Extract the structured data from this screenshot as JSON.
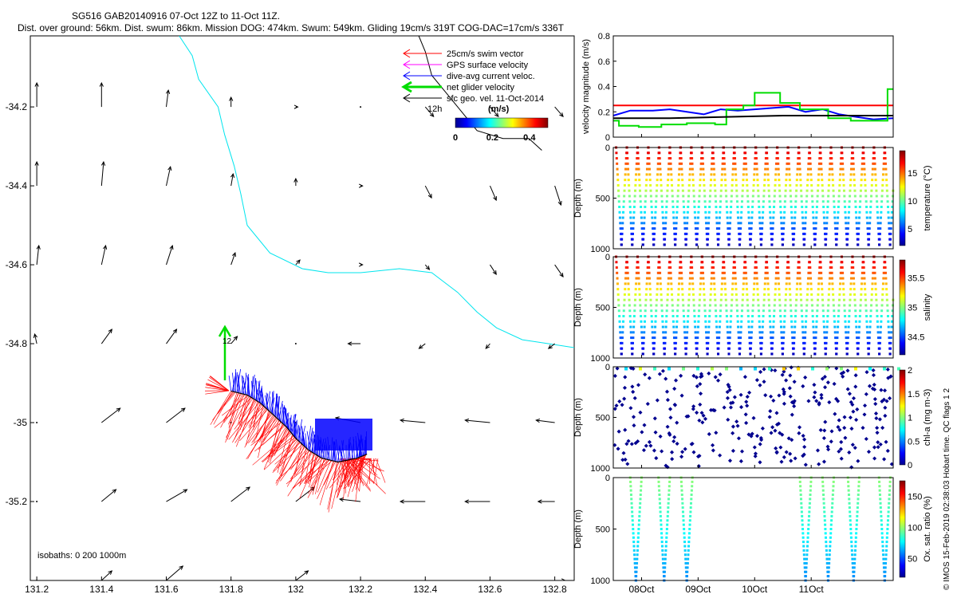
{
  "header": {
    "title": "SG516 GAB20140916 07-Oct 12Z to 11-Oct 11Z.",
    "subtitle": "Dist. over ground: 56km. Dist. swum: 86km. Mission DOG: 474km. Swum: 549km. Gliding 19cm/s 319T COG-DAC=17cm/s 336T"
  },
  "credit": "© IMOS 15-Feb-2019 02:38:03 Hobart time. QC flags 1  2",
  "colors": {
    "swim": "#ff0000",
    "gps": "#ff00ff",
    "dac": "#0000ff",
    "net": "#00dd00",
    "geo": "#000000",
    "coast": "#00e5ee",
    "isobath": "#000000"
  },
  "chart_data": [
    {
      "type": "map",
      "xticks": [
        "131.2",
        "131.4",
        "131.6",
        "131.8",
        "132",
        "132.2",
        "132.4",
        "132.6",
        "132.8"
      ],
      "yticks": [
        "-34.2",
        "-34.4",
        "-34.6",
        "-34.8",
        "-35",
        "-35.2"
      ],
      "xlim": [
        131.18,
        132.86
      ],
      "ylim": [
        -35.4,
        -34.02
      ],
      "legend": [
        "25cm/s swim vector",
        "GPS surface velocity",
        "dive-avg current veloc.",
        "net glider velocity",
        "sfc geo. vel. 11-Oct-2014"
      ],
      "legend_position": "top-right",
      "track_time_label": "12h",
      "start_label": "12",
      "colorbar": {
        "label": "(m/s)",
        "ticks": [
          "0",
          "0.2",
          "0.4"
        ],
        "range": [
          0,
          0.5
        ]
      },
      "isobaths_label": "isobaths: 0   200   1000m",
      "isobath_lines": [
        {
          "name": "coast",
          "points": [
            [
              131.64,
              -34.02
            ],
            [
              131.68,
              -34.07
            ],
            [
              131.7,
              -34.13
            ],
            [
              131.76,
              -34.2
            ],
            [
              131.78,
              -34.27
            ],
            [
              131.81,
              -34.35
            ],
            [
              131.83,
              -34.42
            ],
            [
              131.85,
              -34.5
            ],
            [
              131.92,
              -34.57
            ],
            [
              132.02,
              -34.61
            ],
            [
              132.1,
              -34.62
            ],
            [
              132.2,
              -34.62
            ],
            [
              132.32,
              -34.61
            ],
            [
              132.42,
              -34.62
            ],
            [
              132.5,
              -34.67
            ],
            [
              132.56,
              -34.72
            ],
            [
              132.62,
              -34.76
            ],
            [
              132.7,
              -34.79
            ],
            [
              132.78,
              -34.8
            ],
            [
              132.86,
              -34.81
            ]
          ]
        },
        {
          "name": "isobath-black",
          "points": [
            [
              132.38,
              -34.02
            ],
            [
              132.4,
              -34.06
            ],
            [
              132.42,
              -34.12
            ],
            [
              132.47,
              -34.17
            ],
            [
              132.56,
              -34.26
            ],
            [
              132.64,
              -34.28
            ],
            [
              132.72,
              -34.28
            ],
            [
              132.76,
              -34.31
            ]
          ]
        }
      ],
      "track": [
        [
          131.8,
          -34.92
        ],
        [
          131.85,
          -34.93
        ],
        [
          131.89,
          -34.95
        ],
        [
          131.93,
          -34.98
        ],
        [
          131.97,
          -35.01
        ],
        [
          132.0,
          -35.04
        ],
        [
          132.04,
          -35.07
        ],
        [
          132.08,
          -35.09
        ],
        [
          132.13,
          -35.1
        ],
        [
          132.19,
          -35.09
        ],
        [
          132.22,
          -35.08
        ]
      ],
      "geo_vectors": [
        [
          131.2,
          -34.2,
          0.0,
          0.1
        ],
        [
          131.4,
          -34.2,
          0.0,
          0.1
        ],
        [
          131.6,
          -34.2,
          0.01,
          0.07
        ],
        [
          131.8,
          -34.2,
          0.0,
          0.04
        ],
        [
          132.0,
          -34.2,
          0.01,
          0.0
        ],
        [
          132.2,
          -34.2,
          0.0,
          0.0
        ],
        [
          132.4,
          -34.2,
          0.04,
          -0.04
        ],
        [
          132.6,
          -34.2,
          0.04,
          -0.04
        ],
        [
          132.8,
          -34.2,
          0.04,
          -0.04
        ],
        [
          131.2,
          -34.4,
          0.0,
          0.1
        ],
        [
          131.4,
          -34.4,
          0.01,
          0.1
        ],
        [
          131.6,
          -34.4,
          0.02,
          0.08
        ],
        [
          131.8,
          -34.4,
          0.01,
          0.05
        ],
        [
          132.0,
          -34.4,
          0.0,
          0.03
        ],
        [
          132.2,
          -34.4,
          0.01,
          0.0
        ],
        [
          132.4,
          -34.4,
          0.03,
          -0.05
        ],
        [
          132.6,
          -34.4,
          0.03,
          -0.06
        ],
        [
          132.8,
          -34.4,
          0.03,
          -0.08
        ],
        [
          131.2,
          -34.6,
          0.01,
          0.08
        ],
        [
          131.4,
          -34.6,
          0.02,
          0.08
        ],
        [
          131.6,
          -34.6,
          0.03,
          0.08
        ],
        [
          131.8,
          -34.6,
          0.02,
          0.05
        ],
        [
          132.0,
          -34.6,
          0.02,
          0.02
        ],
        [
          132.2,
          -34.6,
          0.01,
          0.0
        ],
        [
          132.4,
          -34.6,
          0.02,
          -0.02
        ],
        [
          132.6,
          -34.6,
          0.03,
          -0.04
        ],
        [
          132.8,
          -34.6,
          0.04,
          -0.05
        ],
        [
          131.2,
          -34.8,
          -0.01,
          0.04
        ],
        [
          131.4,
          -34.8,
          0.05,
          0.06
        ],
        [
          131.6,
          -34.8,
          0.05,
          0.06
        ],
        [
          131.8,
          -34.8,
          0.03,
          0.03
        ],
        [
          132.0,
          -34.8,
          0.0,
          0.0
        ],
        [
          132.2,
          -34.8,
          -0.06,
          0.0
        ],
        [
          132.4,
          -34.8,
          -0.03,
          -0.02
        ],
        [
          132.6,
          -34.8,
          -0.02,
          -0.02
        ],
        [
          132.8,
          -34.8,
          -0.03,
          -0.02
        ],
        [
          131.2,
          -35.0,
          0.0,
          0.0
        ],
        [
          131.4,
          -35.0,
          0.09,
          0.06
        ],
        [
          131.6,
          -35.0,
          0.09,
          0.06
        ],
        [
          131.8,
          -35.0,
          0.0,
          0.0
        ],
        [
          132.0,
          -35.0,
          0.0,
          0.0
        ],
        [
          132.2,
          -35.0,
          -0.12,
          0.02
        ],
        [
          132.4,
          -35.0,
          -0.12,
          0.01
        ],
        [
          132.6,
          -35.0,
          -0.12,
          0.01
        ],
        [
          132.8,
          -35.0,
          -0.09,
          0.01
        ],
        [
          131.2,
          -35.2,
          0.0,
          0.0
        ],
        [
          131.4,
          -35.2,
          0.07,
          0.05
        ],
        [
          131.6,
          -35.2,
          0.1,
          0.05
        ],
        [
          131.8,
          -35.2,
          0.09,
          0.06
        ],
        [
          132.0,
          -35.2,
          0.09,
          0.06
        ],
        [
          132.2,
          -35.2,
          -0.1,
          0.01
        ],
        [
          132.4,
          -35.2,
          -0.12,
          0.0
        ],
        [
          132.6,
          -35.2,
          -0.12,
          0.0
        ],
        [
          132.8,
          -35.2,
          -0.08,
          0.0
        ],
        [
          131.2,
          -35.4,
          0.0,
          0.0
        ],
        [
          131.4,
          -35.4,
          0.05,
          0.04
        ],
        [
          131.6,
          -35.4,
          0.08,
          0.06
        ],
        [
          131.8,
          -35.4,
          0.0,
          0.0
        ],
        [
          132.0,
          -35.4,
          0.06,
          0.04
        ],
        [
          132.2,
          -35.4,
          0.0,
          0.0
        ],
        [
          132.4,
          -35.4,
          0.0,
          0.0
        ],
        [
          132.6,
          -35.4,
          0.0,
          0.0
        ],
        [
          132.8,
          -35.4,
          0.05,
          0.0
        ]
      ]
    },
    {
      "type": "line",
      "ylabel": "velocity magnitude (m/s)",
      "ylim": [
        0,
        0.8
      ],
      "yticks": [
        "0",
        "0.2",
        "0.4",
        "0.6",
        "0.8"
      ],
      "xlim": [
        0,
        4.95
      ],
      "series": [
        {
          "color": "#ff0000",
          "values": [
            [
              0,
              0.25
            ],
            [
              4.95,
              0.25
            ]
          ]
        },
        {
          "color": "#0000ff",
          "values": [
            [
              0,
              0.17
            ],
            [
              0.3,
              0.21
            ],
            [
              0.7,
              0.21
            ],
            [
              1.0,
              0.22
            ],
            [
              1.3,
              0.2
            ],
            [
              1.6,
              0.18
            ],
            [
              1.9,
              0.22
            ],
            [
              2.2,
              0.21
            ],
            [
              2.5,
              0.22
            ],
            [
              2.8,
              0.23
            ],
            [
              3.1,
              0.24
            ],
            [
              3.4,
              0.2
            ],
            [
              3.7,
              0.22
            ],
            [
              4.0,
              0.18
            ],
            [
              4.3,
              0.16
            ],
            [
              4.6,
              0.14
            ],
            [
              4.95,
              0.15
            ]
          ]
        },
        {
          "color": "#00dd00",
          "values": [
            [
              0,
              0.13
            ],
            [
              0.1,
              0.13
            ],
            [
              0.1,
              0.09
            ],
            [
              0.45,
              0.09
            ],
            [
              0.45,
              0.08
            ],
            [
              0.85,
              0.08
            ],
            [
              0.85,
              0.1
            ],
            [
              1.3,
              0.1
            ],
            [
              1.3,
              0.11
            ],
            [
              1.8,
              0.11
            ],
            [
              1.8,
              0.1
            ],
            [
              2.0,
              0.1
            ],
            [
              2.0,
              0.22
            ],
            [
              2.3,
              0.22
            ],
            [
              2.3,
              0.25
            ],
            [
              2.5,
              0.25
            ],
            [
              2.5,
              0.35
            ],
            [
              2.95,
              0.35
            ],
            [
              2.95,
              0.27
            ],
            [
              3.3,
              0.27
            ],
            [
              3.3,
              0.22
            ],
            [
              3.8,
              0.22
            ],
            [
              3.8,
              0.15
            ],
            [
              4.2,
              0.15
            ],
            [
              4.2,
              0.13
            ],
            [
              4.5,
              0.13
            ],
            [
              4.5,
              0.13
            ],
            [
              4.85,
              0.13
            ],
            [
              4.85,
              0.38
            ],
            [
              4.95,
              0.38
            ]
          ]
        },
        {
          "color": "#000000",
          "values": [
            [
              0,
              0.15
            ],
            [
              1.0,
              0.15
            ],
            [
              2.0,
              0.16
            ],
            [
              3.0,
              0.17
            ],
            [
              4.0,
              0.17
            ],
            [
              4.95,
              0.17
            ]
          ]
        }
      ]
    },
    {
      "type": "scatter",
      "ylabel": "Depth (m)",
      "cblabel": "temperature (°C)",
      "ylim": [
        1000,
        0
      ],
      "yticks": [
        "0",
        "500",
        "1000"
      ],
      "cbticks": [
        "5",
        "10",
        "15"
      ],
      "cbrange": [
        2,
        19
      ],
      "profiles": {
        "count": 26,
        "start": 0.05,
        "period": 0.19,
        "top": 0,
        "bottom": 960,
        "vtop": 18,
        "vbottom": 3
      }
    },
    {
      "type": "scatter",
      "ylabel": "Depth (m)",
      "cblabel": "salinity",
      "ylim": [
        1000,
        0
      ],
      "yticks": [
        "0",
        "500",
        "1000"
      ],
      "cbticks": [
        "34.5",
        "35",
        "35.5"
      ],
      "cbrange": [
        34.2,
        35.8
      ],
      "profiles": {
        "count": 26,
        "start": 0.05,
        "period": 0.19,
        "top": 0,
        "bottom": 960,
        "vtop": 35.7,
        "vbottom": 34.3
      }
    },
    {
      "type": "scatter",
      "ylabel": "Depth (m)",
      "cblabel": "chl-a (mg m-3)",
      "ylim": [
        1000,
        0
      ],
      "yticks": [
        "0",
        "500",
        "1000"
      ],
      "cbticks": [
        "0",
        "0.5",
        "1",
        "1.5",
        "2"
      ],
      "cbrange": [
        0,
        2
      ],
      "scatter_points": {
        "count": 34,
        "step": 95
      }
    },
    {
      "type": "scatter",
      "ylabel": "Depth (m)",
      "cblabel": "Ox. sat. ratio (%)",
      "ylim": [
        1000,
        0
      ],
      "yticks": [
        "0",
        "500",
        "1000"
      ],
      "cbticks": [
        "50",
        "100",
        "150"
      ],
      "cbrange": [
        20,
        175
      ],
      "vees": [
        {
          "x0": 0.3,
          "x1": 0.5,
          "bottom": 1000
        },
        {
          "x0": 0.8,
          "x1": 1.0,
          "bottom": 1000
        },
        {
          "x0": 1.2,
          "x1": 1.4,
          "bottom": 1000
        },
        {
          "x0": 3.3,
          "x1": 3.5,
          "bottom": 1000
        },
        {
          "x0": 3.7,
          "x1": 3.9,
          "bottom": 1000
        },
        {
          "x0": 4.15,
          "x1": 4.35,
          "bottom": 1000
        },
        {
          "x0": 4.7,
          "x1": 4.9,
          "bottom": 1000
        }
      ],
      "vee_values": {
        "top": 100,
        "bottom": 60
      }
    }
  ],
  "time_axis": {
    "ticks": [
      {
        "label": "08Oct",
        "x": 0.5
      },
      {
        "label": "09Oct",
        "x": 1.5
      },
      {
        "label": "10Oct",
        "x": 2.5
      },
      {
        "label": "11Oct",
        "x": 3.5
      }
    ]
  }
}
